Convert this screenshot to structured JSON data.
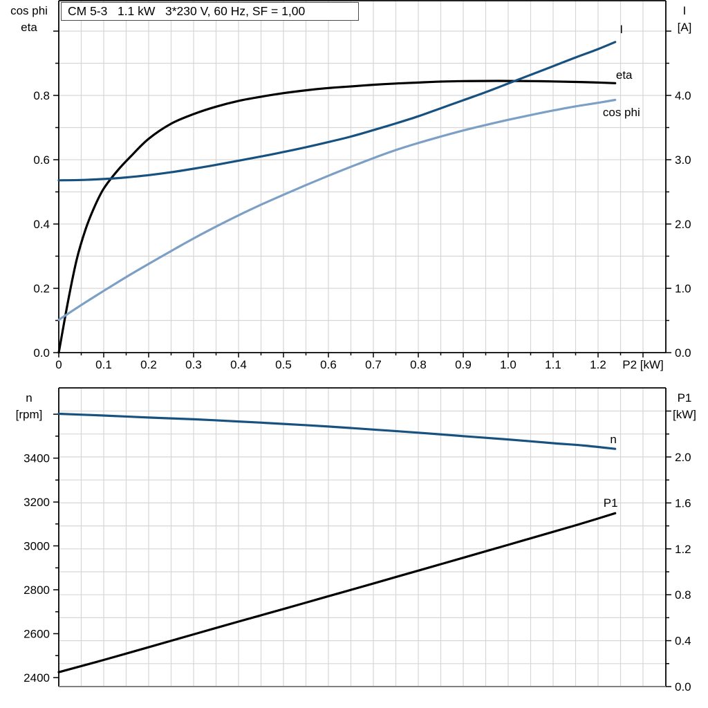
{
  "title": "CM 5-3   1.1 kW   3*230 V, 60 Hz, SF = 1,00",
  "colors": {
    "black": "#000000",
    "dark_blue": "#175180",
    "light_blue": "#7b9fc5",
    "grid": "#d6d6d6",
    "axis": "#000000",
    "frame_gray": "#808080"
  },
  "chart_data": [
    {
      "id": "motor-electrical",
      "type": "line",
      "title": "CM 5-3   1.1 kW   3*230 V, 60 Hz, SF = 1,00",
      "x_axis": {
        "label": "P2 [kW]",
        "label_x": 1.3,
        "min": 0,
        "max": 1.3508,
        "major_ticks": [
          {
            "v": 0,
            "t": "0"
          },
          {
            "v": 0.1,
            "t": "0.1"
          },
          {
            "v": 0.2,
            "t": "0.2"
          },
          {
            "v": 0.3,
            "t": "0.3"
          },
          {
            "v": 0.4,
            "t": "0.4"
          },
          {
            "v": 0.5,
            "t": "0.5"
          },
          {
            "v": 0.6,
            "t": "0.6"
          },
          {
            "v": 0.7,
            "t": "0.7"
          },
          {
            "v": 0.8,
            "t": "0.8"
          },
          {
            "v": 0.9,
            "t": "0.9"
          },
          {
            "v": 1.0,
            "t": "1.0"
          },
          {
            "v": 1.1,
            "t": "1.1"
          },
          {
            "v": 1.2,
            "t": "1.2"
          },
          {
            "v": 1.3,
            "t": ""
          }
        ],
        "minor_ticks": [
          0.05,
          0.15,
          0.25,
          0.35,
          0.45,
          0.55,
          0.65,
          0.75,
          0.85,
          0.95,
          1.05,
          1.15,
          1.25,
          1.35
        ]
      },
      "left_axis": {
        "corner": [
          "cos phi",
          "eta"
        ],
        "min": 0,
        "max": 1.0946,
        "major_ticks": [
          {
            "v": 0,
            "t": "0.0"
          },
          {
            "v": 0.2,
            "t": "0.2"
          },
          {
            "v": 0.4,
            "t": "0.4"
          },
          {
            "v": 0.6,
            "t": "0.6"
          },
          {
            "v": 0.8,
            "t": "0.8"
          },
          {
            "v": 1.0,
            "t": ""
          }
        ],
        "minor_ticks": [
          0.1,
          0.3,
          0.5,
          0.7,
          0.9
        ]
      },
      "right_axis": {
        "corner": [
          "I",
          "[A]"
        ],
        "min": 0,
        "max": 5.4731,
        "major_ticks": [
          {
            "v": 0,
            "t": "0.0"
          },
          {
            "v": 1,
            "t": "1.0"
          },
          {
            "v": 2,
            "t": "2.0"
          },
          {
            "v": 3,
            "t": "3.0"
          },
          {
            "v": 4,
            "t": "4.0"
          },
          {
            "v": 5,
            "t": ""
          }
        ],
        "minor_ticks": [
          0.5,
          1.5,
          2.5,
          3.5,
          4.5
        ]
      },
      "grid": {
        "h_axis": "left",
        "h_step": 0.1,
        "v_step": 0.05
      },
      "series": [
        {
          "name": "eta",
          "axis": "left",
          "color_key": "black",
          "label": "eta",
          "label_at": [
            1.258,
            0.8645
          ],
          "points": [
            [
              0,
              0
            ],
            [
              0.02,
              0.155
            ],
            [
              0.04,
              0.29
            ],
            [
              0.06,
              0.385
            ],
            [
              0.08,
              0.455
            ],
            [
              0.1,
              0.51
            ],
            [
              0.13,
              0.565
            ],
            [
              0.16,
              0.61
            ],
            [
              0.2,
              0.665
            ],
            [
              0.25,
              0.712
            ],
            [
              0.3,
              0.742
            ],
            [
              0.35,
              0.765
            ],
            [
              0.4,
              0.783
            ],
            [
              0.45,
              0.796
            ],
            [
              0.5,
              0.807
            ],
            [
              0.55,
              0.816
            ],
            [
              0.6,
              0.823
            ],
            [
              0.65,
              0.828
            ],
            [
              0.7,
              0.833
            ],
            [
              0.75,
              0.837
            ],
            [
              0.8,
              0.84
            ],
            [
              0.85,
              0.843
            ],
            [
              0.9,
              0.8445
            ],
            [
              0.95,
              0.845
            ],
            [
              1.0,
              0.845
            ],
            [
              1.05,
              0.8445
            ],
            [
              1.1,
              0.8435
            ],
            [
              1.15,
              0.842
            ],
            [
              1.2,
              0.84
            ],
            [
              1.238,
              0.838
            ]
          ]
        },
        {
          "name": "I",
          "axis": "right",
          "color_key": "dark_blue",
          "label": "I",
          "label_at": [
            1.252,
            5.03
          ],
          "points": [
            [
              0,
              2.68
            ],
            [
              0.05,
              2.685
            ],
            [
              0.1,
              2.7
            ],
            [
              0.15,
              2.725
            ],
            [
              0.2,
              2.76
            ],
            [
              0.25,
              2.805
            ],
            [
              0.3,
              2.86
            ],
            [
              0.35,
              2.92
            ],
            [
              0.4,
              2.985
            ],
            [
              0.45,
              3.05
            ],
            [
              0.5,
              3.12
            ],
            [
              0.55,
              3.195
            ],
            [
              0.6,
              3.275
            ],
            [
              0.65,
              3.36
            ],
            [
              0.7,
              3.46
            ],
            [
              0.75,
              3.565
            ],
            [
              0.8,
              3.675
            ],
            [
              0.85,
              3.8
            ],
            [
              0.9,
              3.925
            ],
            [
              0.95,
              4.05
            ],
            [
              1.0,
              4.185
            ],
            [
              1.05,
              4.32
            ],
            [
              1.1,
              4.455
            ],
            [
              1.15,
              4.59
            ],
            [
              1.2,
              4.72
            ],
            [
              1.238,
              4.83
            ]
          ]
        },
        {
          "name": "cos phi",
          "axis": "left",
          "color_key": "light_blue",
          "label": "cos phi",
          "label_at": [
            1.252,
            0.748
          ],
          "points": [
            [
              0,
              0.102
            ],
            [
              0.05,
              0.148
            ],
            [
              0.1,
              0.192
            ],
            [
              0.15,
              0.235
            ],
            [
              0.2,
              0.276
            ],
            [
              0.25,
              0.316
            ],
            [
              0.3,
              0.355
            ],
            [
              0.35,
              0.392
            ],
            [
              0.4,
              0.427
            ],
            [
              0.45,
              0.46
            ],
            [
              0.5,
              0.491
            ],
            [
              0.55,
              0.521
            ],
            [
              0.6,
              0.55
            ],
            [
              0.65,
              0.578
            ],
            [
              0.7,
              0.605
            ],
            [
              0.75,
              0.63
            ],
            [
              0.8,
              0.652
            ],
            [
              0.85,
              0.672
            ],
            [
              0.9,
              0.691
            ],
            [
              0.95,
              0.708
            ],
            [
              1.0,
              0.724
            ],
            [
              1.05,
              0.739
            ],
            [
              1.1,
              0.753
            ],
            [
              1.15,
              0.766
            ],
            [
              1.2,
              0.777
            ],
            [
              1.238,
              0.786
            ]
          ]
        }
      ]
    },
    {
      "id": "motor-mechanical",
      "type": "line",
      "x_axis": {
        "label": "",
        "label_x": 1.3,
        "min": 0,
        "max": 1.3508,
        "major_ticks": [],
        "minor_ticks": []
      },
      "left_axis": {
        "corner": [
          "n",
          "[rpm]"
        ],
        "min": 2359,
        "max": 3720,
        "major_ticks": [
          {
            "v": 2400,
            "t": "2400"
          },
          {
            "v": 2600,
            "t": "2600"
          },
          {
            "v": 2800,
            "t": "2800"
          },
          {
            "v": 3000,
            "t": "3000"
          },
          {
            "v": 3200,
            "t": "3200"
          },
          {
            "v": 3400,
            "t": "3400"
          },
          {
            "v": 3600,
            "t": ""
          }
        ],
        "minor_ticks": [
          2500,
          2700,
          2900,
          3100,
          3300,
          3500
        ]
      },
      "right_axis": {
        "corner": [
          "P1",
          "[kW]"
        ],
        "min": 0,
        "max": 2.602,
        "major_ticks": [
          {
            "v": 0,
            "t": "0.0"
          },
          {
            "v": 0.4,
            "t": "0.4"
          },
          {
            "v": 0.8,
            "t": "0.8"
          },
          {
            "v": 1.2,
            "t": "1.2"
          },
          {
            "v": 1.6,
            "t": "1.6"
          },
          {
            "v": 2.0,
            "t": "2.0"
          },
          {
            "v": 2.4,
            "t": ""
          }
        ],
        "minor_ticks": [
          0.2,
          0.6,
          1.0,
          1.4,
          1.8,
          2.2
        ]
      },
      "grid": {
        "h_axis": "right",
        "h_step": 0.2,
        "v_step": 0.05
      },
      "series": [
        {
          "name": "n",
          "axis": "left",
          "color_key": "dark_blue",
          "label": "n",
          "label_at": [
            1.234,
            3487
          ],
          "points": [
            [
              0,
              3602
            ],
            [
              0.1,
              3594
            ],
            [
              0.2,
              3585
            ],
            [
              0.3,
              3577
            ],
            [
              0.4,
              3567
            ],
            [
              0.5,
              3556
            ],
            [
              0.6,
              3544
            ],
            [
              0.7,
              3530
            ],
            [
              0.8,
              3516
            ],
            [
              0.9,
              3500
            ],
            [
              1.0,
              3485
            ],
            [
              1.1,
              3468
            ],
            [
              1.17,
              3457
            ],
            [
              1.238,
              3442
            ]
          ]
        },
        {
          "name": "P1",
          "axis": "right",
          "color_key": "black",
          "label": "P1",
          "label_at": [
            1.228,
            1.602
          ],
          "points": [
            [
              0,
              0.125
            ],
            [
              0.1,
              0.232
            ],
            [
              0.2,
              0.343
            ],
            [
              0.3,
              0.455
            ],
            [
              0.4,
              0.566
            ],
            [
              0.5,
              0.676
            ],
            [
              0.6,
              0.787
            ],
            [
              0.7,
              0.898
            ],
            [
              0.8,
              1.01
            ],
            [
              0.9,
              1.122
            ],
            [
              1.0,
              1.235
            ],
            [
              1.1,
              1.348
            ],
            [
              1.17,
              1.428
            ],
            [
              1.238,
              1.51
            ]
          ]
        }
      ]
    }
  ]
}
